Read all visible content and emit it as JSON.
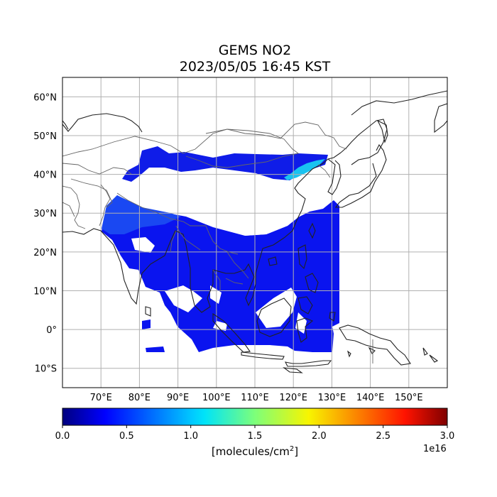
{
  "title": {
    "line1": "GEMS NO2",
    "line2": "2023/05/05 16:45 KST"
  },
  "map": {
    "lon_range": [
      60,
      160
    ],
    "lat_range": [
      -15,
      65
    ],
    "lon_ticks": [
      {
        "value": 70,
        "label": "70°E"
      },
      {
        "value": 80,
        "label": "80°E"
      },
      {
        "value": 90,
        "label": "90°E"
      },
      {
        "value": 100,
        "label": "100°E"
      },
      {
        "value": 110,
        "label": "110°E"
      },
      {
        "value": 120,
        "label": "120°E"
      },
      {
        "value": 130,
        "label": "130°E"
      },
      {
        "value": 140,
        "label": "140°E"
      },
      {
        "value": 150,
        "label": "150°E"
      }
    ],
    "lat_ticks": [
      {
        "value": 60,
        "label": "60°N"
      },
      {
        "value": 50,
        "label": "50°N"
      },
      {
        "value": 40,
        "label": "40°N"
      },
      {
        "value": 30,
        "label": "30°N"
      },
      {
        "value": 20,
        "label": "20°N"
      },
      {
        "value": 10,
        "label": "10°N"
      },
      {
        "value": 0,
        "label": "0°"
      },
      {
        "value": -10,
        "label": "10°S"
      }
    ],
    "gridlines": true
  },
  "colorbar": {
    "colormap": "jet",
    "range": [
      0.0,
      3.0
    ],
    "ticks": [
      "0.0",
      "0.5",
      "1.0",
      "1.5",
      "2.0",
      "2.5",
      "3.0"
    ],
    "label_text": "[molecules/cm",
    "label_sup": "2",
    "label_close": "]",
    "exponent": "1e16"
  }
}
